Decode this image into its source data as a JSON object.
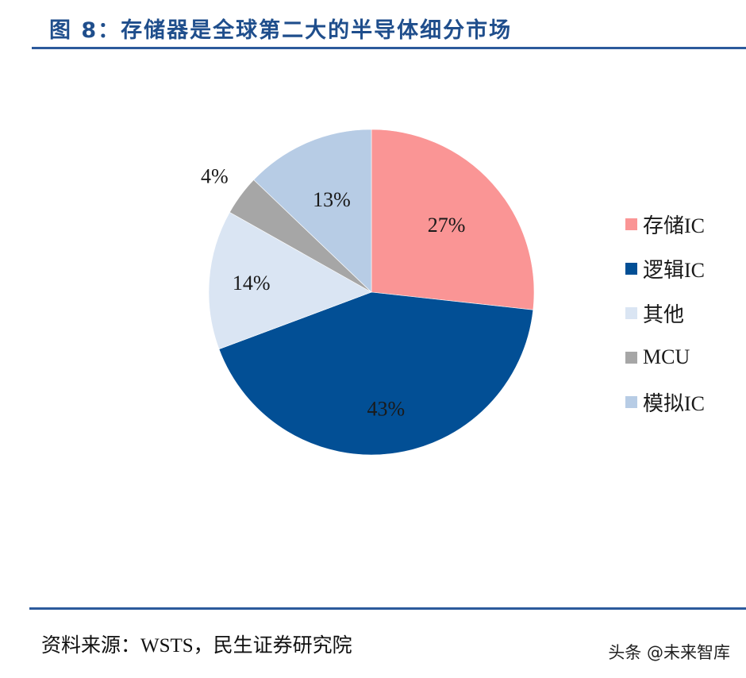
{
  "header": {
    "title": "图 8：存储器是全球第二大的半导体细分市场"
  },
  "footer": {
    "source": "资料来源：WSTS，民生证券研究院",
    "watermark": "头条 @未来智库"
  },
  "colors": {
    "rule": "#2c5a9c",
    "title": "#1f4e8c"
  },
  "chart_data": {
    "type": "pie",
    "title": "存储器是全球第二大的半导体细分市场",
    "start_angle": "12 o'clock",
    "direction": "clockwise",
    "legend_position": "right",
    "categories": [
      "存储IC",
      "逻辑IC",
      "其他",
      "MCU",
      "模拟IC"
    ],
    "values": [
      27,
      43,
      14,
      4,
      13
    ],
    "labels": [
      "27%",
      "43%",
      "14%",
      "4%",
      "13%"
    ],
    "colors": [
      "#fa9595",
      "#024f95",
      "#dae5f3",
      "#a6a6a6",
      "#b7cce5"
    ],
    "unit": "%"
  }
}
